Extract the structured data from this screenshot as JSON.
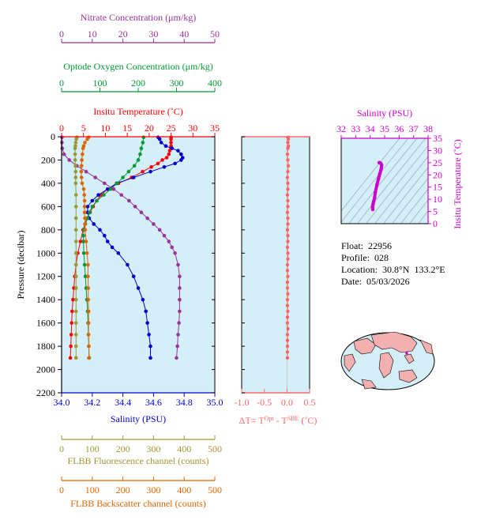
{
  "colors": {
    "nitrate": "#993399",
    "oxygen": "#009933",
    "temperature": "#ff0000",
    "salinity": "#0000cc",
    "fluorescence": "#999933",
    "backscatter": "#dd6600",
    "delta_t": "#ff6666",
    "ts_axis": "#cc00cc",
    "plot_bg": "#d5eff8"
  },
  "float_info": {
    "float": "Float:  22956",
    "profile": "Profile:  028",
    "location": "Location:  30.8°N  133.2°E",
    "date": "Date:  05/03/2026"
  },
  "chart_data": [
    {
      "type": "line",
      "name": "main-profile",
      "ylabel": "Pressure (decibar)",
      "ylim": [
        2200,
        0
      ],
      "yticks": [
        0,
        200,
        400,
        600,
        800,
        1000,
        1200,
        1400,
        1600,
        1800,
        2000,
        2200
      ],
      "grid": false,
      "axes": {
        "nitrate": {
          "label": "Nitrate Concentration (μm/kg)",
          "lim": [
            0,
            50
          ],
          "ticks": [
            0,
            10,
            20,
            30,
            40,
            50
          ]
        },
        "oxygen": {
          "label": "Optode Oxygen Concentration (μm/kg)",
          "lim": [
            0,
            400
          ],
          "ticks": [
            0,
            100,
            200,
            300,
            400
          ]
        },
        "temperature": {
          "label": "Insitu Temperature (˚C)",
          "lim": [
            0,
            35
          ],
          "ticks": [
            0,
            5,
            10,
            15,
            20,
            25,
            30,
            35
          ]
        },
        "salinity": {
          "label": "Salinity (PSU)",
          "lim": [
            34.0,
            35.0
          ],
          "ticks": [
            "34.0",
            "34.2",
            "34.4",
            "34.6",
            "34.8",
            "35.0"
          ]
        },
        "fluorescence": {
          "label": "FLBB Fluorescence channel (counts)",
          "lim": [
            0,
            500
          ],
          "ticks": [
            0,
            100,
            200,
            300,
            400,
            500
          ]
        },
        "backscatter": {
          "label": "FLBB Backscatter channel (counts)",
          "lim": [
            0,
            500
          ],
          "ticks": [
            0,
            100,
            200,
            300,
            400,
            500
          ]
        }
      },
      "series": [
        {
          "key": "temperature",
          "pressure": [
            5,
            20,
            50,
            80,
            100,
            120,
            150,
            180,
            200,
            230,
            260,
            300,
            350,
            400,
            450,
            500,
            550,
            600,
            650,
            700,
            800,
            900,
            1000,
            1100,
            1200,
            1300,
            1400,
            1500,
            1600,
            1700,
            1800,
            1900
          ],
          "values": [
            25,
            25,
            25,
            25,
            25,
            24.7,
            24.5,
            24,
            23,
            22,
            20.5,
            18.5,
            16,
            13,
            10.5,
            9,
            8,
            7.2,
            6.5,
            5.8,
            4.9,
            4.3,
            3.7,
            3.3,
            3.0,
            2.8,
            2.6,
            2.4,
            2.3,
            2.2,
            2.1,
            2.0
          ]
        },
        {
          "key": "salinity",
          "pressure": [
            5,
            20,
            50,
            80,
            100,
            120,
            150,
            180,
            200,
            230,
            260,
            300,
            350,
            400,
            450,
            500,
            550,
            600,
            650,
            700,
            750,
            800,
            850,
            900,
            950,
            1000,
            1100,
            1200,
            1300,
            1400,
            1500,
            1600,
            1700,
            1800,
            1900
          ],
          "values": [
            34.63,
            34.64,
            34.65,
            34.68,
            34.72,
            34.76,
            34.78,
            34.79,
            34.78,
            34.74,
            34.67,
            34.58,
            34.47,
            34.36,
            34.3,
            34.24,
            34.2,
            34.17,
            34.17,
            34.18,
            34.21,
            34.25,
            34.28,
            34.3,
            34.33,
            34.37,
            34.43,
            34.47,
            34.5,
            34.53,
            34.55,
            34.56,
            34.57,
            34.58,
            34.58
          ]
        },
        {
          "key": "oxygen",
          "pressure": [
            5,
            50,
            100,
            150,
            200,
            250,
            300,
            350,
            400,
            450,
            500,
            550,
            600,
            650,
            700,
            750,
            800,
            850,
            900,
            1000,
            1100,
            1200,
            1300,
            1400,
            1500,
            1600,
            1700,
            1800,
            1900
          ],
          "values": [
            214,
            212,
            208,
            205,
            200,
            190,
            175,
            160,
            145,
            128,
            110,
            92,
            80,
            73,
            68,
            62,
            58,
            57,
            57,
            58,
            60,
            62,
            64,
            66,
            68,
            69,
            70,
            71,
            72
          ]
        },
        {
          "key": "nitrate",
          "pressure": [
            5,
            50,
            100,
            150,
            200,
            250,
            300,
            350,
            400,
            450,
            500,
            550,
            600,
            650,
            700,
            750,
            800,
            850,
            900,
            950,
            1000,
            1100,
            1200,
            1300,
            1400,
            1500,
            1600,
            1700,
            1800,
            1900
          ],
          "values": [
            0.1,
            0.1,
            0.2,
            0.8,
            2.5,
            5,
            8,
            11,
            14,
            17,
            19.5,
            22,
            24,
            26,
            28,
            30,
            32,
            33.5,
            35,
            36,
            37,
            38,
            38.5,
            38.5,
            38.5,
            38.5,
            38.3,
            38,
            37.8,
            37.5
          ]
        },
        {
          "key": "fluorescence",
          "pressure": [
            5,
            20,
            50,
            80,
            100,
            150,
            200,
            250,
            300,
            350,
            400,
            500,
            600,
            700,
            800,
            900,
            1000,
            1100,
            1200,
            1300,
            1400,
            1500,
            1600,
            1700,
            1800,
            1900
          ],
          "values": [
            50,
            48,
            46,
            45,
            44,
            44,
            44,
            45,
            46,
            46,
            46,
            47,
            47,
            47,
            47,
            47,
            47,
            47,
            47,
            47,
            47,
            47,
            47,
            47,
            47,
            47
          ]
        },
        {
          "key": "backscatter",
          "pressure": [
            5,
            20,
            50,
            80,
            100,
            150,
            200,
            250,
            300,
            350,
            400,
            450,
            500,
            550,
            600,
            650,
            700,
            750,
            800,
            900,
            1000,
            1100,
            1200,
            1300,
            1400,
            1500,
            1600,
            1700,
            1800,
            1900
          ],
          "values": [
            88,
            84,
            76,
            72,
            70,
            68,
            66,
            65,
            64,
            65,
            67,
            72,
            74,
            75,
            75,
            75,
            76,
            76,
            77,
            80,
            83,
            86,
            86,
            87,
            87,
            88,
            88,
            88,
            89,
            89
          ]
        }
      ]
    },
    {
      "type": "line",
      "name": "delta-t",
      "xlabel": "ΔT= T^Opt - T^SBE (˚C)",
      "xlabel_parts": {
        "prefix": "ΔT= T",
        "sup1": "Opt",
        "middle": " - T",
        "sup2": "SBE",
        "suffix": " (˚C)"
      },
      "xlim": [
        -1.0,
        0.5
      ],
      "xticks": [
        "-1.0",
        "-0.5",
        "0.0",
        "0.5"
      ],
      "ylim": [
        2200,
        0
      ],
      "pressure": [
        5,
        20,
        50,
        80,
        100,
        150,
        200,
        250,
        300,
        350,
        400,
        450,
        500,
        550,
        600,
        650,
        700,
        750,
        800,
        850,
        900,
        950,
        1000,
        1050,
        1100,
        1150,
        1200,
        1250,
        1300,
        1350,
        1400,
        1450,
        1500,
        1550,
        1600,
        1650,
        1700,
        1750,
        1800,
        1850,
        1900
      ],
      "values": [
        0.02,
        0.03,
        0.02,
        0.03,
        0.02,
        0.01,
        0.02,
        0.03,
        0.02,
        0.01,
        0.02,
        0.02,
        0.01,
        0.02,
        0.02,
        0.01,
        0.02,
        0.02,
        0.01,
        0.02,
        0.02,
        0.01,
        0.02,
        0.02,
        0.01,
        0.01,
        0.02,
        0.01,
        0.01,
        0.02,
        0.01,
        0.01,
        0.02,
        0.01,
        0.01,
        0.02,
        0.01,
        0.01,
        0.01,
        0.01,
        0.01
      ]
    },
    {
      "type": "scatter",
      "name": "t-s-diagram",
      "xlabel": "Salinity (PSU)",
      "ylabel": "Insitu Temperature (˚C)",
      "xlim": [
        32,
        38
      ],
      "xticks": [
        32,
        33,
        34,
        35,
        36,
        37,
        38
      ],
      "ylim": [
        0,
        35
      ],
      "yticks": [
        0,
        5,
        10,
        15,
        20,
        25,
        30,
        35
      ],
      "salinity": [
        34.62,
        34.66,
        34.72,
        34.76,
        34.79,
        34.78,
        34.74,
        34.67,
        34.58,
        34.47,
        34.36,
        34.3,
        34.24,
        34.2,
        34.17,
        34.17,
        34.18
      ],
      "temperature": [
        25,
        25,
        24.8,
        24.5,
        24,
        23,
        22,
        20.5,
        18.5,
        16,
        13,
        10.5,
        9,
        8,
        7.2,
        6.5,
        5.8
      ]
    }
  ]
}
